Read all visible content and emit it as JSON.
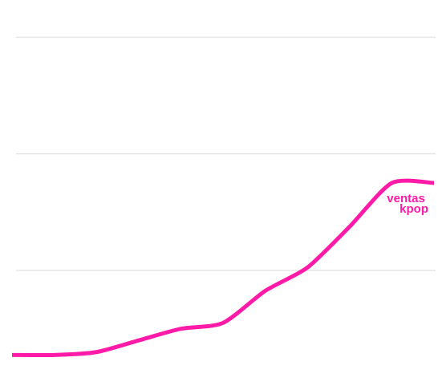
{
  "chart_data": {
    "type": "line",
    "title": "",
    "xlabel": "",
    "ylabel": "",
    "x": [
      0,
      1,
      2,
      3,
      4,
      5,
      6,
      7,
      8,
      9,
      10
    ],
    "series": [
      {
        "name": "ventas kpop",
        "values": [
          0.1,
          0.1,
          0.2,
          0.6,
          1.0,
          1.2,
          2.3,
          3.1,
          4.5,
          6.0,
          6.0
        ],
        "color": "#ff1aa8"
      }
    ],
    "gridlines_y": [
      3,
      7,
      11
    ],
    "ylim": [
      0,
      12
    ],
    "grid": true,
    "legend": "inline-end",
    "gridline_color": "#e6e6e6"
  },
  "label": {
    "line1": "ventas",
    "line2": "kpop"
  }
}
